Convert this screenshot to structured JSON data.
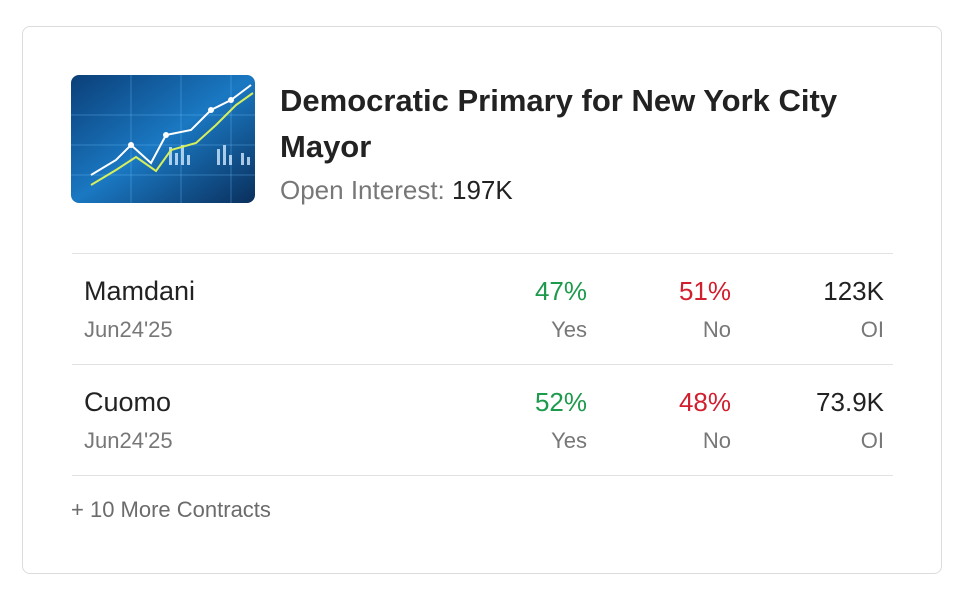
{
  "header": {
    "title": "Democratic Primary for New York City Mayor",
    "open_interest_label": "Open Interest:",
    "open_interest": "197K"
  },
  "contracts": [
    {
      "name": "Mamdani",
      "date": "Jun24'25",
      "yes": "47%",
      "yes_label": "Yes",
      "no": "51%",
      "no_label": "No",
      "oi": "123K",
      "oi_label": "OI"
    },
    {
      "name": "Cuomo",
      "date": "Jun24'25",
      "yes": "52%",
      "yes_label": "Yes",
      "no": "48%",
      "no_label": "No",
      "oi": "73.9K",
      "oi_label": "OI"
    }
  ],
  "footer": {
    "more": "+ 10 More Contracts"
  }
}
